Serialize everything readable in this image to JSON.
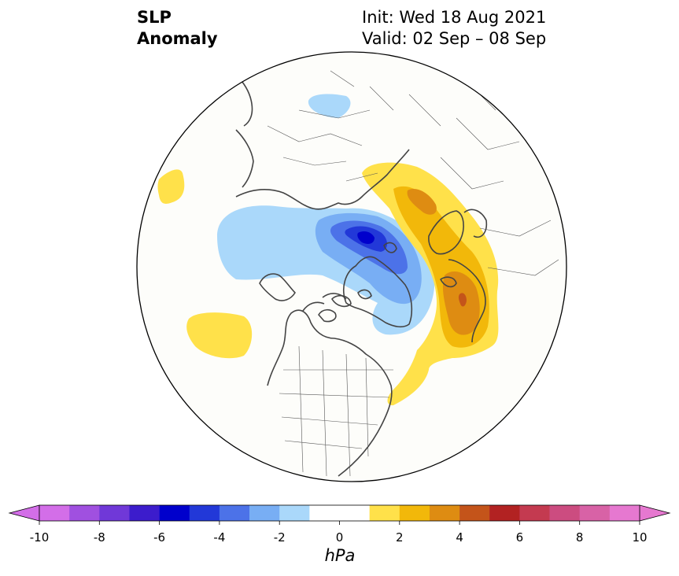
{
  "title": {
    "line1": "SLP",
    "line2": "Anomaly"
  },
  "info": {
    "init": "Init: Wed 18 Aug 2021",
    "valid": "Valid: 02 Sep – 08 Sep"
  },
  "colorbar": {
    "unit": "hPa",
    "tick_labels": [
      "-10",
      "-8",
      "-6",
      "-4",
      "-2",
      "0",
      "2",
      "4",
      "6",
      "8",
      "10"
    ],
    "levels": [
      -10,
      -9,
      -8,
      -7,
      -6,
      -5,
      -4,
      -3,
      -2,
      -1,
      1,
      2,
      3,
      4,
      5,
      6,
      7,
      8,
      9,
      10
    ],
    "colors": [
      "#d36ee8",
      "#a050e0",
      "#7038d8",
      "#3c1ccc",
      "#0000cc",
      "#2238d8",
      "#4c72e8",
      "#78aef4",
      "#aad8fa",
      "#ffffff",
      "#ffe14a",
      "#f2b80a",
      "#de8c12",
      "#c4541a",
      "#b22222",
      "#c43a50",
      "#cc4c80",
      "#d862a6",
      "#e678d0"
    ],
    "extend": "both"
  },
  "map": {
    "projection": "north-polar-stereographic",
    "land_edge_color": "#444444",
    "background_color": "#fdfdfa"
  }
}
